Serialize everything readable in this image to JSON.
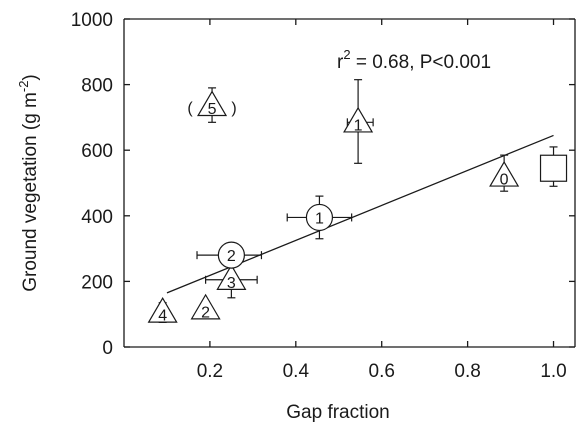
{
  "chart_data": {
    "type": "scatter",
    "title": "",
    "xlabel": "Gap fraction",
    "ylabel_main": "Ground vegetation (g m",
    "ylabel_sup": "-2",
    "ylabel_close": ")",
    "xlim": [
      0,
      1.05
    ],
    "ylim": [
      0,
      1000
    ],
    "x_ticks": [
      {
        "value": 0.2,
        "label": "0.2"
      },
      {
        "value": 0.4,
        "label": "0.4"
      },
      {
        "value": 0.6,
        "label": "0.6"
      },
      {
        "value": 0.8,
        "label": "0.8"
      },
      {
        "value": 1.0,
        "label": "1.0"
      }
    ],
    "y_ticks": [
      {
        "value": 0,
        "label": "0"
      },
      {
        "value": 200,
        "label": "200"
      },
      {
        "value": 400,
        "label": "400"
      },
      {
        "value": 600,
        "label": "600"
      },
      {
        "value": 800,
        "label": "800"
      },
      {
        "value": 1000,
        "label": "1000"
      }
    ],
    "annotation": {
      "prefix": "r",
      "sup": "2",
      "rest": " = 0.68, P<0.001"
    },
    "regression": {
      "x": [
        0.1,
        1.0
      ],
      "y": [
        165,
        645
      ]
    },
    "points": [
      {
        "marker": "triangle",
        "label": "4",
        "x": 0.09,
        "y": 105,
        "yerr": [
          75,
          135
        ]
      },
      {
        "marker": "triangle",
        "label": "2",
        "x": 0.19,
        "y": 115,
        "yerr": [
          88,
          140
        ]
      },
      {
        "marker": "triangle",
        "label": "3",
        "x": 0.25,
        "y": 205,
        "yerr": [
          150,
          255
        ],
        "xerr": [
          0.19,
          0.31
        ]
      },
      {
        "marker": "circle",
        "label": "2",
        "x": 0.25,
        "y": 280,
        "xerr": [
          0.17,
          0.32
        ]
      },
      {
        "marker": "circle",
        "label": "1",
        "x": 0.455,
        "y": 395,
        "yerr": [
          330,
          460
        ],
        "xerr": [
          0.38,
          0.53
        ]
      },
      {
        "marker": "triangle",
        "label": "1",
        "x": 0.545,
        "y": 685,
        "yerr": [
          560,
          815
        ],
        "xerr": [
          0.52,
          0.58
        ]
      },
      {
        "marker": "triangle",
        "label": "5",
        "x": 0.205,
        "y": 735,
        "yerr": [
          685,
          790
        ],
        "bracketed": true
      },
      {
        "marker": "triangle",
        "label": "0",
        "x": 0.885,
        "y": 520,
        "yerr": [
          475,
          585
        ]
      },
      {
        "marker": "square",
        "label": "",
        "x": 1.0,
        "y": 545,
        "yerr": [
          490,
          610
        ]
      }
    ]
  }
}
